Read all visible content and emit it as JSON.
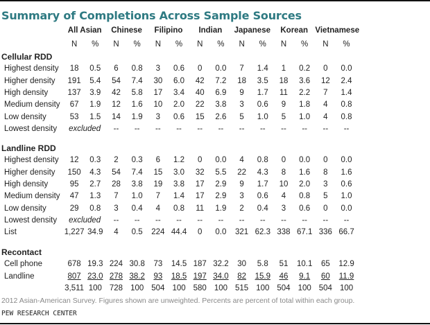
{
  "title": "Summary of Completions Across Sample Sources",
  "groups": [
    "All Asian",
    "Chinese",
    "Filipino",
    "Indian",
    "Japanese",
    "Korean",
    "Vietnamese"
  ],
  "subheaders": [
    "N",
    "%"
  ],
  "sections": [
    {
      "name": "Cellular RDD",
      "rows": [
        {
          "label": "Highest density",
          "values": [
            "18",
            "0.5",
            "6",
            "0.8",
            "3",
            "0.6",
            "0",
            "0.0",
            "7",
            "1.4",
            "1",
            "0.2",
            "0",
            "0.0"
          ]
        },
        {
          "label": "Higher density",
          "values": [
            "191",
            "5.4",
            "54",
            "7.4",
            "30",
            "6.0",
            "42",
            "7.2",
            "18",
            "3.5",
            "18",
            "3.6",
            "12",
            "2.4"
          ]
        },
        {
          "label": "High density",
          "values": [
            "137",
            "3.9",
            "42",
            "5.8",
            "17",
            "3.4",
            "40",
            "6.9",
            "9",
            "1.7",
            "11",
            "2.2",
            "7",
            "1.4"
          ]
        },
        {
          "label": "Medium density",
          "values": [
            "67",
            "1.9",
            "12",
            "1.6",
            "10",
            "2.0",
            "22",
            "3.8",
            "3",
            "0.6",
            "9",
            "1.8",
            "4",
            "0.8"
          ]
        },
        {
          "label": "Low density",
          "values": [
            "53",
            "1.5",
            "14",
            "1.9",
            "3",
            "0.6",
            "15",
            "2.6",
            "5",
            "1.0",
            "5",
            "1.0",
            "4",
            "0.8"
          ]
        },
        {
          "label": "Lowest density",
          "excluded": "excluded",
          "values": [
            "--",
            "--",
            "--",
            "--",
            "--",
            "--",
            "--",
            "--",
            "--",
            "--",
            "--",
            "--"
          ]
        }
      ]
    },
    {
      "name": "Landline RDD",
      "rows": [
        {
          "label": "Highest density",
          "values": [
            "12",
            "0.3",
            "2",
            "0.3",
            "6",
            "1.2",
            "0",
            "0.0",
            "4",
            "0.8",
            "0",
            "0.0",
            "0",
            "0.0"
          ]
        },
        {
          "label": "Higher density",
          "values": [
            "150",
            "4.3",
            "54",
            "7.4",
            "15",
            "3.0",
            "32",
            "5.5",
            "22",
            "4.3",
            "8",
            "1.6",
            "8",
            "1.6"
          ]
        },
        {
          "label": "High density",
          "values": [
            "95",
            "2.7",
            "28",
            "3.8",
            "19",
            "3.8",
            "17",
            "2.9",
            "9",
            "1.7",
            "10",
            "2.0",
            "3",
            "0.6"
          ]
        },
        {
          "label": "Medium density",
          "values": [
            "47",
            "1.3",
            "7",
            "1.0",
            "7",
            "1.4",
            "17",
            "2.9",
            "3",
            "0.6",
            "4",
            "0.8",
            "5",
            "1.0"
          ]
        },
        {
          "label": "Low density",
          "values": [
            "29",
            "0.8",
            "3",
            "0.4",
            "4",
            "0.8",
            "11",
            "1.9",
            "2",
            "0.4",
            "3",
            "0.6",
            "0",
            "0.0"
          ]
        },
        {
          "label": "Lowest density",
          "excluded": "excluded",
          "values": [
            "--",
            "--",
            "--",
            "--",
            "--",
            "--",
            "--",
            "--",
            "--",
            "--",
            "--",
            "--"
          ]
        },
        {
          "label": "List",
          "values": [
            "1,227",
            "34.9",
            "4",
            "0.5",
            "224",
            "44.4",
            "0",
            "0.0",
            "321",
            "62.3",
            "338",
            "67.1",
            "336",
            "66.7"
          ]
        }
      ]
    },
    {
      "name": "Recontact",
      "rows": [
        {
          "label": "Cell phone",
          "values": [
            "678",
            "19.3",
            "224",
            "30.8",
            "73",
            "14.5",
            "187",
            "32.2",
            "30",
            "5.8",
            "51",
            "10.1",
            "65",
            "12.9"
          ]
        },
        {
          "label": "Landline",
          "underline": true,
          "values": [
            "807",
            "23.0",
            "278",
            "38.2",
            "93",
            "18.5",
            "197",
            "34.0",
            "82",
            "15.9",
            "46",
            "9.1",
            "60",
            "11.9"
          ]
        },
        {
          "label": "",
          "values": [
            "3,511",
            "100",
            "728",
            "100",
            "504",
            "100",
            "580",
            "100",
            "515",
            "100",
            "504",
            "100",
            "504",
            "100"
          ]
        }
      ]
    }
  ],
  "note": "2012 Asian-American Survey. Figures shown are unweighted. Percents are percent of total within each group.",
  "source": "PEW RESEARCH CENTER"
}
